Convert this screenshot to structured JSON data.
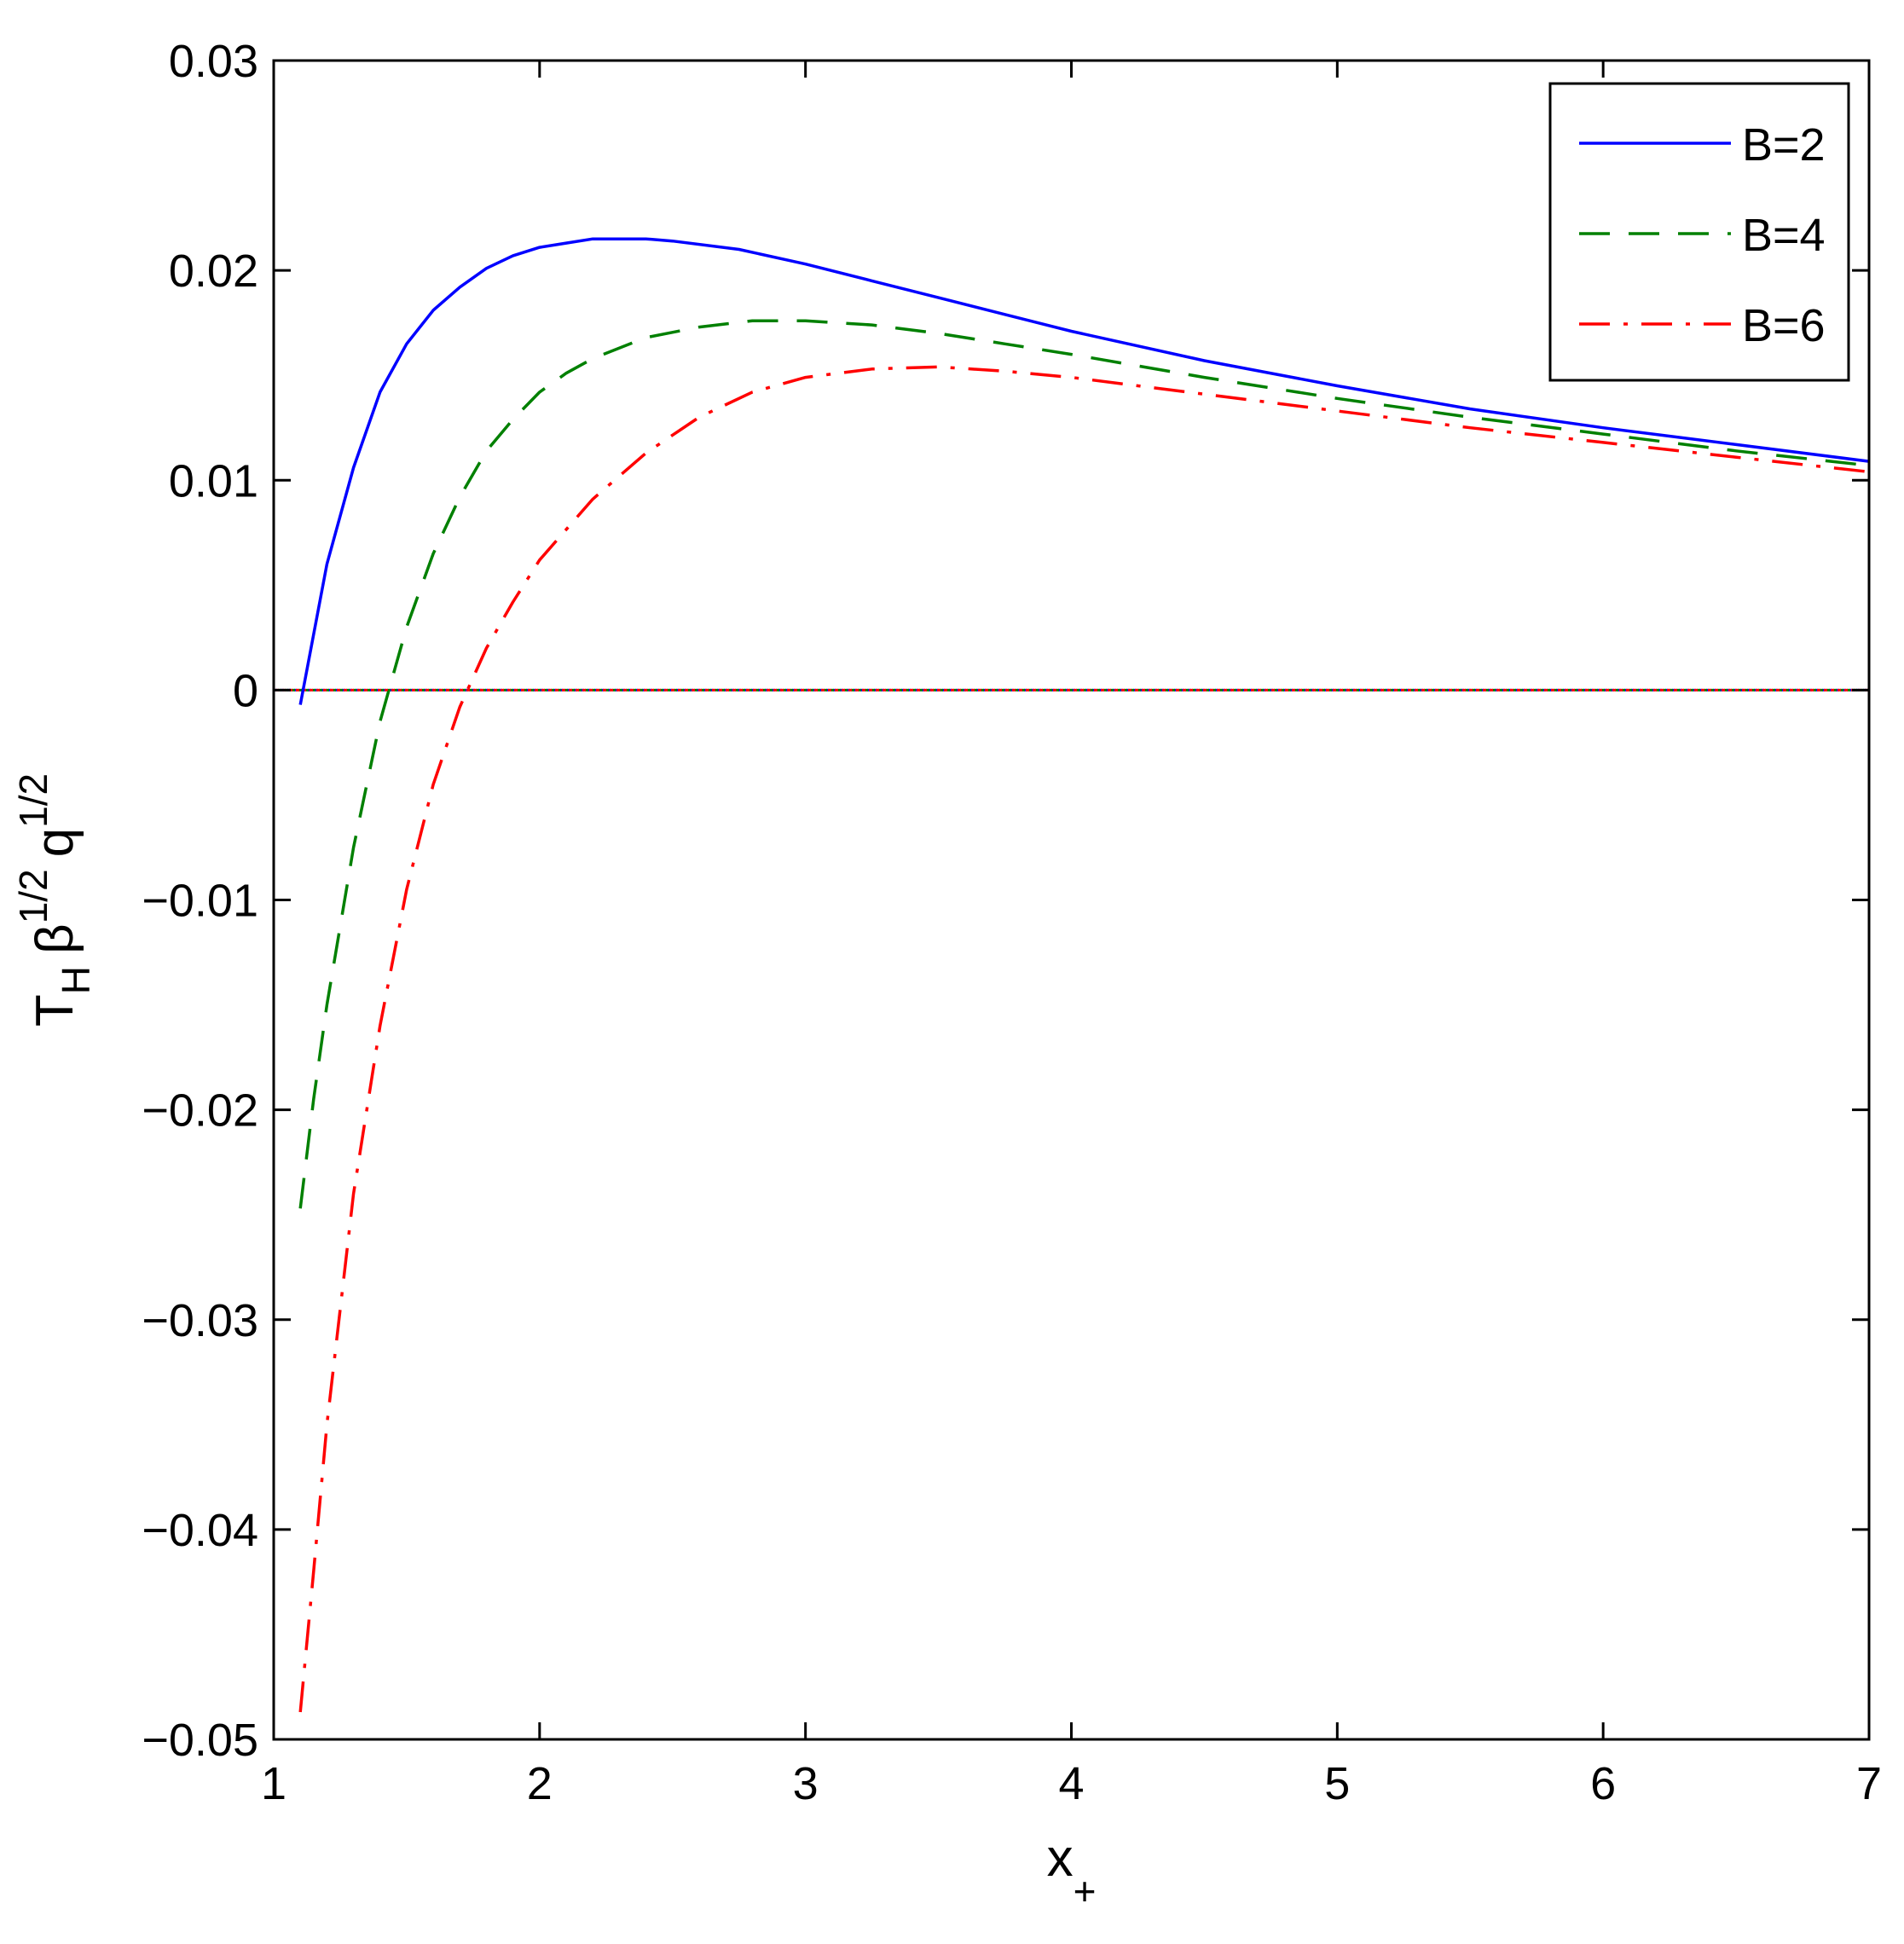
{
  "chart_data": {
    "type": "line",
    "title": "",
    "xlabel": {
      "base": "x",
      "sub": "+"
    },
    "ylabel": {
      "t": "T",
      "t_sub": "H",
      "beta": "β",
      "beta_sup": "1/2",
      "q": "q",
      "q_sup": "1/2"
    },
    "xlim": [
      1,
      7
    ],
    "ylim": [
      -0.05,
      0.03
    ],
    "x_ticks": [
      1,
      2,
      3,
      4,
      5,
      6,
      7
    ],
    "x_tick_labels": [
      "1",
      "2",
      "3",
      "4",
      "5",
      "6",
      "7"
    ],
    "y_ticks": [
      -0.05,
      -0.04,
      -0.03,
      -0.02,
      -0.01,
      0,
      0.01,
      0.02,
      0.03
    ],
    "y_tick_labels": [
      "−0.05",
      "−0.04",
      "−0.03",
      "−0.02",
      "−0.01",
      "0",
      "0.01",
      "0.02",
      "0.03"
    ],
    "grid": false,
    "legend_position": "top-right",
    "zero_line": {
      "y": 0,
      "colors": [
        "#0000ff",
        "#008000",
        "#ff0000"
      ]
    },
    "series": [
      {
        "name": "B=2",
        "color": "#0000ff",
        "style": "solid",
        "points": [
          [
            1.1,
            -0.0007
          ],
          [
            1.2,
            0.006
          ],
          [
            1.3,
            0.0106
          ],
          [
            1.4,
            0.0142
          ],
          [
            1.5,
            0.0165
          ],
          [
            1.6,
            0.0181
          ],
          [
            1.7,
            0.0192
          ],
          [
            1.8,
            0.0201
          ],
          [
            1.9,
            0.0207
          ],
          [
            2.0,
            0.0211
          ],
          [
            2.1,
            0.0213
          ],
          [
            2.2,
            0.0215
          ],
          [
            2.3,
            0.0215
          ],
          [
            2.4,
            0.0215
          ],
          [
            2.5,
            0.0214
          ],
          [
            2.75,
            0.021
          ],
          [
            3.0,
            0.0203
          ],
          [
            3.25,
            0.0195
          ],
          [
            3.5,
            0.0187
          ],
          [
            3.75,
            0.0179
          ],
          [
            4.0,
            0.0171
          ],
          [
            4.5,
            0.0157
          ],
          [
            5.0,
            0.0145
          ],
          [
            5.5,
            0.0134
          ],
          [
            6.0,
            0.0125
          ],
          [
            6.5,
            0.0117
          ],
          [
            7.0,
            0.0109
          ]
        ]
      },
      {
        "name": "B=4",
        "color": "#008000",
        "style": "dashed",
        "points": [
          [
            1.1,
            -0.0247
          ],
          [
            1.15,
            -0.0195
          ],
          [
            1.2,
            -0.015
          ],
          [
            1.3,
            -0.0075
          ],
          [
            1.4,
            -0.0015
          ],
          [
            1.5,
            0.003
          ],
          [
            1.6,
            0.0065
          ],
          [
            1.7,
            0.0092
          ],
          [
            1.8,
            0.0114
          ],
          [
            1.9,
            0.0129
          ],
          [
            2.0,
            0.0142
          ],
          [
            2.1,
            0.0151
          ],
          [
            2.2,
            0.0158
          ],
          [
            2.4,
            0.0168
          ],
          [
            2.6,
            0.0173
          ],
          [
            2.8,
            0.0176
          ],
          [
            3.0,
            0.0176
          ],
          [
            3.25,
            0.0174
          ],
          [
            3.5,
            0.017
          ],
          [
            3.75,
            0.0165
          ],
          [
            4.0,
            0.016
          ],
          [
            4.5,
            0.0149
          ],
          [
            5.0,
            0.0139
          ],
          [
            5.5,
            0.013
          ],
          [
            6.0,
            0.0122
          ],
          [
            6.5,
            0.0114
          ],
          [
            7.0,
            0.0107
          ]
        ]
      },
      {
        "name": "B=6",
        "color": "#ff0000",
        "style": "dashdot",
        "points": [
          [
            1.1,
            -0.0487
          ],
          [
            1.15,
            -0.042
          ],
          [
            1.2,
            -0.035
          ],
          [
            1.3,
            -0.024
          ],
          [
            1.4,
            -0.016
          ],
          [
            1.5,
            -0.0095
          ],
          [
            1.6,
            -0.0045
          ],
          [
            1.7,
            -0.0008
          ],
          [
            1.75,
            0.0006
          ],
          [
            1.8,
            0.002
          ],
          [
            1.9,
            0.0042
          ],
          [
            2.0,
            0.0062
          ],
          [
            2.2,
            0.0091
          ],
          [
            2.4,
            0.0113
          ],
          [
            2.6,
            0.013
          ],
          [
            2.8,
            0.0142
          ],
          [
            3.0,
            0.0149
          ],
          [
            3.25,
            0.0153
          ],
          [
            3.5,
            0.0154
          ],
          [
            3.75,
            0.0152
          ],
          [
            4.0,
            0.0149
          ],
          [
            4.5,
            0.0141
          ],
          [
            5.0,
            0.0133
          ],
          [
            5.5,
            0.0125
          ],
          [
            6.0,
            0.0118
          ],
          [
            6.5,
            0.0111
          ],
          [
            7.0,
            0.0104
          ]
        ]
      }
    ]
  }
}
